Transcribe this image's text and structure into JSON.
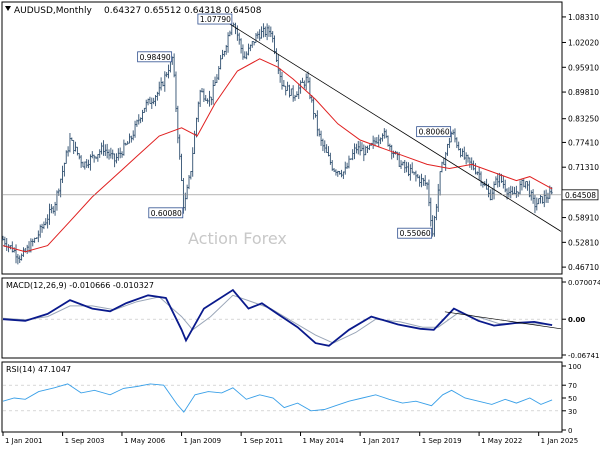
{
  "header": {
    "symbol": "AUDUSD,Monthly",
    "ohlc": "0.64327 0.65512 0.64318 0.64508"
  },
  "watermark": "Action Forex",
  "colors": {
    "bars": "#2f4f6f",
    "ma": "#e02020",
    "trendline": "#000000",
    "macd": "#0a1a8c",
    "signal": "#9aa6b8",
    "rsi": "#3aa0e8",
    "grid": "#bfbfbf",
    "current_price_line": "#888888"
  },
  "chart_data": [
    {
      "type": "bar",
      "name": "price",
      "y_ticks": [
        "1.08310",
        "1.02020",
        "0.95910",
        "0.89810",
        "0.83250",
        "0.77410",
        "0.71310",
        "0.64508",
        "0.58910",
        "0.52810",
        "0.46710"
      ],
      "ylim": [
        0.46,
        1.11
      ],
      "current_price": 0.64508,
      "x_ticks": [
        "1 Jan 2001",
        "1 Sep 2003",
        "1 May 2006",
        "1 Jan 2009",
        "1 Sep 2011",
        "1 May 2014",
        "1 Jan 2017",
        "1 Sep 2019",
        "1 May 2022",
        "1 Jan 2025"
      ],
      "x_tick_years": [
        2001,
        2003.67,
        2006.33,
        2009,
        2011.67,
        2014.33,
        2017,
        2019.67,
        2022.33,
        2025
      ],
      "xlim": [
        2001,
        2026.0
      ],
      "price_path": [
        {
          "year": 2001.0,
          "value": 0.535
        },
        {
          "year": 2001.8,
          "value": 0.49
        },
        {
          "year": 2002.5,
          "value": 0.54
        },
        {
          "year": 2003.3,
          "value": 0.62
        },
        {
          "year": 2004.0,
          "value": 0.78
        },
        {
          "year": 2004.6,
          "value": 0.72
        },
        {
          "year": 2005.5,
          "value": 0.76
        },
        {
          "year": 2006.0,
          "value": 0.73
        },
        {
          "year": 2006.7,
          "value": 0.78
        },
        {
          "year": 2007.3,
          "value": 0.86
        },
        {
          "year": 2008.0,
          "value": 0.9
        },
        {
          "year": 2008.6,
          "value": 0.984
        },
        {
          "year": 2008.85,
          "value": 0.78
        },
        {
          "year": 2009.1,
          "value": 0.61
        },
        {
          "year": 2009.4,
          "value": 0.7
        },
        {
          "year": 2009.8,
          "value": 0.9
        },
        {
          "year": 2010.3,
          "value": 0.88
        },
        {
          "year": 2010.9,
          "value": 1.0
        },
        {
          "year": 2011.3,
          "value": 1.079
        },
        {
          "year": 2011.8,
          "value": 0.98
        },
        {
          "year": 2012.4,
          "value": 1.04
        },
        {
          "year": 2013.0,
          "value": 1.05
        },
        {
          "year": 2013.5,
          "value": 0.92
        },
        {
          "year": 2014.0,
          "value": 0.89
        },
        {
          "year": 2014.6,
          "value": 0.93
        },
        {
          "year": 2015.2,
          "value": 0.78
        },
        {
          "year": 2015.8,
          "value": 0.71
        },
        {
          "year": 2016.3,
          "value": 0.7
        },
        {
          "year": 2016.8,
          "value": 0.76
        },
        {
          "year": 2017.3,
          "value": 0.75
        },
        {
          "year": 2018.0,
          "value": 0.8
        },
        {
          "year": 2018.8,
          "value": 0.72
        },
        {
          "year": 2019.5,
          "value": 0.69
        },
        {
          "year": 2020.0,
          "value": 0.67
        },
        {
          "year": 2020.25,
          "value": 0.551
        },
        {
          "year": 2020.6,
          "value": 0.7
        },
        {
          "year": 2021.1,
          "value": 0.8
        },
        {
          "year": 2021.6,
          "value": 0.74
        },
        {
          "year": 2022.3,
          "value": 0.7
        },
        {
          "year": 2022.8,
          "value": 0.64
        },
        {
          "year": 2023.2,
          "value": 0.69
        },
        {
          "year": 2023.8,
          "value": 0.64
        },
        {
          "year": 2024.4,
          "value": 0.68
        },
        {
          "year": 2024.8,
          "value": 0.62
        },
        {
          "year": 2025.3,
          "value": 0.64
        },
        {
          "year": 2025.6,
          "value": 0.645
        }
      ],
      "moving_average": [
        {
          "year": 2001.0,
          "value": 0.52
        },
        {
          "year": 2002.0,
          "value": 0.505
        },
        {
          "year": 2003.0,
          "value": 0.52
        },
        {
          "year": 2004.0,
          "value": 0.58
        },
        {
          "year": 2005.0,
          "value": 0.64
        },
        {
          "year": 2006.0,
          "value": 0.69
        },
        {
          "year": 2007.0,
          "value": 0.74
        },
        {
          "year": 2008.0,
          "value": 0.79
        },
        {
          "year": 2009.0,
          "value": 0.81
        },
        {
          "year": 2009.7,
          "value": 0.79
        },
        {
          "year": 2010.5,
          "value": 0.87
        },
        {
          "year": 2011.5,
          "value": 0.95
        },
        {
          "year": 2012.5,
          "value": 0.98
        },
        {
          "year": 2013.3,
          "value": 0.96
        },
        {
          "year": 2014.0,
          "value": 0.93
        },
        {
          "year": 2015.0,
          "value": 0.88
        },
        {
          "year": 2016.0,
          "value": 0.82
        },
        {
          "year": 2017.0,
          "value": 0.78
        },
        {
          "year": 2018.0,
          "value": 0.76
        },
        {
          "year": 2019.0,
          "value": 0.74
        },
        {
          "year": 2020.0,
          "value": 0.72
        },
        {
          "year": 2021.0,
          "value": 0.71
        },
        {
          "year": 2022.0,
          "value": 0.72
        },
        {
          "year": 2023.0,
          "value": 0.7
        },
        {
          "year": 2024.0,
          "value": 0.68
        },
        {
          "year": 2024.6,
          "value": 0.69
        },
        {
          "year": 2025.6,
          "value": 0.66
        }
      ],
      "trendline": [
        {
          "year": 2010.6,
          "value": 1.085
        },
        {
          "year": 2026.0,
          "value": 0.555
        }
      ],
      "annotations": [
        {
          "text": "0.98490",
          "year": 2008.6,
          "value": 0.9849,
          "side": "left"
        },
        {
          "text": "1.07790",
          "year": 2011.3,
          "value": 1.0779,
          "side": "left"
        },
        {
          "text": "0.60080",
          "year": 2009.1,
          "value": 0.6008,
          "side": "left"
        },
        {
          "text": "0.55060",
          "year": 2020.25,
          "value": 0.5506,
          "side": "left"
        },
        {
          "text": "0.80060",
          "year": 2021.1,
          "value": 0.8006,
          "side": "left"
        }
      ]
    },
    {
      "type": "line",
      "name": "MACD",
      "label": "MACD(12,26,9) -0.010666 -0.010327",
      "y_ticks": [
        "0.070074",
        "0.00",
        "-0.067419"
      ],
      "ylim": [
        -0.0674,
        0.0701
      ],
      "series": [
        {
          "role": "macd",
          "points": [
            {
              "year": 2001.0,
              "value": 0.0
            },
            {
              "year": 2002.0,
              "value": -0.003
            },
            {
              "year": 2003.0,
              "value": 0.01
            },
            {
              "year": 2004.0,
              "value": 0.036
            },
            {
              "year": 2005.0,
              "value": 0.02
            },
            {
              "year": 2005.8,
              "value": 0.015
            },
            {
              "year": 2006.5,
              "value": 0.03
            },
            {
              "year": 2007.5,
              "value": 0.045
            },
            {
              "year": 2008.3,
              "value": 0.04
            },
            {
              "year": 2009.0,
              "value": -0.02
            },
            {
              "year": 2009.2,
              "value": -0.04
            },
            {
              "year": 2010.0,
              "value": 0.02
            },
            {
              "year": 2011.3,
              "value": 0.055
            },
            {
              "year": 2012.0,
              "value": 0.02
            },
            {
              "year": 2012.6,
              "value": 0.03
            },
            {
              "year": 2013.3,
              "value": 0.01
            },
            {
              "year": 2014.2,
              "value": -0.015
            },
            {
              "year": 2015.0,
              "value": -0.045
            },
            {
              "year": 2015.6,
              "value": -0.05
            },
            {
              "year": 2016.5,
              "value": -0.02
            },
            {
              "year": 2017.5,
              "value": 0.005
            },
            {
              "year": 2018.7,
              "value": -0.01
            },
            {
              "year": 2019.7,
              "value": -0.018
            },
            {
              "year": 2020.3,
              "value": -0.02
            },
            {
              "year": 2021.2,
              "value": 0.02
            },
            {
              "year": 2022.3,
              "value": -0.003
            },
            {
              "year": 2023.0,
              "value": -0.012
            },
            {
              "year": 2024.0,
              "value": -0.007
            },
            {
              "year": 2024.8,
              "value": -0.005
            },
            {
              "year": 2025.6,
              "value": -0.011
            }
          ]
        },
        {
          "role": "signal",
          "points": [
            {
              "year": 2001.0,
              "value": 0.002
            },
            {
              "year": 2002.0,
              "value": -0.001
            },
            {
              "year": 2003.0,
              "value": 0.005
            },
            {
              "year": 2004.0,
              "value": 0.025
            },
            {
              "year": 2005.0,
              "value": 0.025
            },
            {
              "year": 2006.0,
              "value": 0.018
            },
            {
              "year": 2007.0,
              "value": 0.033
            },
            {
              "year": 2008.0,
              "value": 0.042
            },
            {
              "year": 2009.0,
              "value": 0.005
            },
            {
              "year": 2009.5,
              "value": -0.02
            },
            {
              "year": 2010.3,
              "value": 0.005
            },
            {
              "year": 2011.3,
              "value": 0.045
            },
            {
              "year": 2012.0,
              "value": 0.035
            },
            {
              "year": 2013.0,
              "value": 0.02
            },
            {
              "year": 2014.0,
              "value": -0.005
            },
            {
              "year": 2015.0,
              "value": -0.03
            },
            {
              "year": 2015.8,
              "value": -0.045
            },
            {
              "year": 2016.8,
              "value": -0.025
            },
            {
              "year": 2017.7,
              "value": 0.0
            },
            {
              "year": 2018.8,
              "value": -0.005
            },
            {
              "year": 2019.8,
              "value": -0.015
            },
            {
              "year": 2020.5,
              "value": -0.015
            },
            {
              "year": 2021.4,
              "value": 0.012
            },
            {
              "year": 2022.4,
              "value": 0.003
            },
            {
              "year": 2023.2,
              "value": -0.008
            },
            {
              "year": 2024.2,
              "value": -0.008
            },
            {
              "year": 2025.6,
              "value": -0.01
            }
          ]
        }
      ],
      "trendline": [
        {
          "year": 2020.8,
          "value": 0.014
        },
        {
          "year": 2026.0,
          "value": -0.018
        }
      ]
    },
    {
      "type": "line",
      "name": "RSI",
      "label": "RSI(14) 47.1047",
      "y_ticks": [
        "100",
        "70",
        "50",
        "30",
        "0"
      ],
      "ylim": [
        0,
        100
      ],
      "levels": [
        70,
        30
      ],
      "points": [
        {
          "year": 2001.0,
          "value": 45
        },
        {
          "year": 2001.5,
          "value": 50
        },
        {
          "year": 2002.0,
          "value": 48
        },
        {
          "year": 2002.6,
          "value": 60
        },
        {
          "year": 2003.3,
          "value": 66
        },
        {
          "year": 2003.9,
          "value": 72
        },
        {
          "year": 2004.5,
          "value": 58
        },
        {
          "year": 2005.1,
          "value": 62
        },
        {
          "year": 2005.8,
          "value": 55
        },
        {
          "year": 2006.4,
          "value": 65
        },
        {
          "year": 2007.0,
          "value": 68
        },
        {
          "year": 2007.6,
          "value": 72
        },
        {
          "year": 2008.2,
          "value": 70
        },
        {
          "year": 2008.8,
          "value": 40
        },
        {
          "year": 2009.1,
          "value": 28
        },
        {
          "year": 2009.6,
          "value": 55
        },
        {
          "year": 2010.2,
          "value": 60
        },
        {
          "year": 2010.8,
          "value": 58
        },
        {
          "year": 2011.3,
          "value": 66
        },
        {
          "year": 2011.9,
          "value": 48
        },
        {
          "year": 2012.5,
          "value": 55
        },
        {
          "year": 2013.1,
          "value": 50
        },
        {
          "year": 2013.6,
          "value": 35
        },
        {
          "year": 2014.2,
          "value": 42
        },
        {
          "year": 2014.8,
          "value": 30
        },
        {
          "year": 2015.4,
          "value": 32
        },
        {
          "year": 2015.9,
          "value": 38
        },
        {
          "year": 2016.5,
          "value": 45
        },
        {
          "year": 2017.1,
          "value": 50
        },
        {
          "year": 2017.7,
          "value": 55
        },
        {
          "year": 2018.3,
          "value": 48
        },
        {
          "year": 2018.9,
          "value": 42
        },
        {
          "year": 2019.5,
          "value": 45
        },
        {
          "year": 2020.2,
          "value": 38
        },
        {
          "year": 2020.7,
          "value": 55
        },
        {
          "year": 2021.1,
          "value": 62
        },
        {
          "year": 2021.7,
          "value": 50
        },
        {
          "year": 2022.3,
          "value": 45
        },
        {
          "year": 2022.9,
          "value": 40
        },
        {
          "year": 2023.5,
          "value": 48
        },
        {
          "year": 2024.0,
          "value": 42
        },
        {
          "year": 2024.6,
          "value": 50
        },
        {
          "year": 2025.1,
          "value": 40
        },
        {
          "year": 2025.6,
          "value": 47.1
        }
      ]
    }
  ]
}
